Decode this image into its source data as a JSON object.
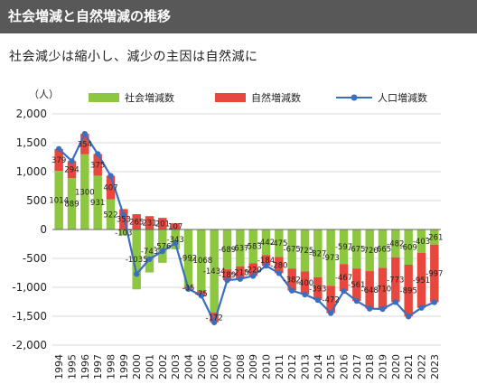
{
  "title": "社会増減と自然増減の推移",
  "subtitle": "社会減少は縮小し、減少の主因は自然減に",
  "chart_data": {
    "type": "bar",
    "unit_label": "（人）",
    "categories": [
      "1994",
      "1995",
      "1996",
      "1997",
      "1998",
      "1999",
      "2000",
      "2001",
      "2002",
      "2003",
      "2004",
      "2005",
      "2006",
      "2007",
      "2008",
      "2009",
      "2010",
      "2011",
      "2012",
      "2013",
      "2014",
      "2015",
      "2016",
      "2017",
      "2018",
      "2019",
      "2020",
      "2021",
      "2022",
      "2023"
    ],
    "series": [
      {
        "name": "社会増減数",
        "type": "bar",
        "color": "#8dc63f",
        "values": [
          1014,
          889,
          1300,
          931,
          522,
          -103,
          -1035,
          -743,
          -576,
          -343,
          -992,
          -1068,
          -1434,
          -689,
          -637,
          -583,
          -442,
          -475,
          -675,
          -725,
          -827,
          -973,
          -597,
          -675,
          -720,
          -665,
          -482,
          -609,
          -403,
          -261
        ],
        "labels": [
          "1014",
          "889",
          "1300",
          "931",
          "522",
          "-103",
          "-1035",
          "-743",
          "-576",
          "-343",
          "-992",
          "-1068",
          "-1434",
          "-689",
          "-637",
          "-583",
          "-442",
          "-475",
          "-675",
          "-725",
          "-827",
          "-973",
          "-597",
          "-675",
          "-720",
          "-665",
          "-482",
          "-609",
          "-403",
          "-261"
        ]
      },
      {
        "name": "自然増減数",
        "type": "bar",
        "color": "#e8473e",
        "values": [
          379,
          294,
          354,
          375,
          407,
          353,
          265,
          231,
          201,
          107,
          -35,
          -75,
          -172,
          -189,
          -218,
          -220,
          -184,
          -280,
          -382,
          -400,
          -393,
          -472,
          -467,
          -561,
          -648,
          -710,
          -773,
          -895,
          -951,
          -997
        ],
        "labels": [
          "379",
          "294",
          "354",
          "375",
          "407",
          "353",
          "265",
          "231",
          "201",
          "107",
          "-35",
          "-75",
          "-172",
          "-189",
          "-218",
          "-220",
          "-184",
          "-280",
          "-382",
          "-400",
          "-393",
          "-472",
          "-467",
          "-561",
          "-648",
          "-710",
          "-773",
          "-895",
          "-951",
          "-997"
        ]
      },
      {
        "name": "人口増減数",
        "type": "line",
        "color": "#3a6fc0",
        "values": [
          1393,
          1183,
          1654,
          1306,
          929,
          250,
          -770,
          -512,
          -375,
          -236,
          -1027,
          -1143,
          -1606,
          -878,
          -855,
          -803,
          -626,
          -755,
          -1057,
          -1125,
          -1220,
          -1445,
          -1064,
          -1236,
          -1368,
          -1375,
          -1255,
          -1504,
          -1354,
          -1258
        ]
      }
    ],
    "ylim": [
      -2000,
      2000
    ],
    "y_ticks": [
      "2,000",
      "1,500",
      "1,000",
      "500",
      "0",
      "-500",
      "-1,000",
      "-1,500",
      "-2,000"
    ],
    "legend": "top"
  }
}
